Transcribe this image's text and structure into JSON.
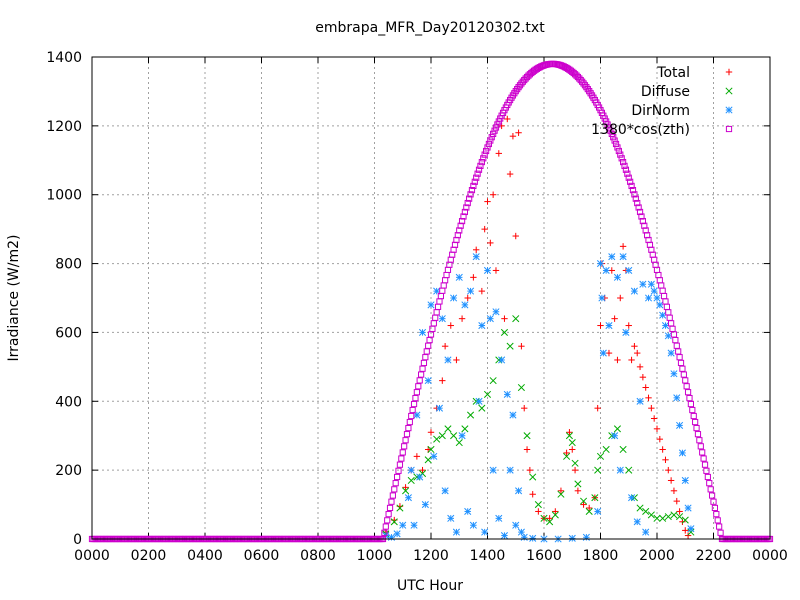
{
  "chart_data": {
    "type": "scatter",
    "title": "embrapa_MFR_Day20120302.txt",
    "xlabel": "UTC Hour",
    "ylabel": "Irradiance (W/m2)",
    "x_range_hours": [
      0,
      24
    ],
    "ylim": [
      0,
      1400
    ],
    "x_tick_labels": [
      "0000",
      "0200",
      "0400",
      "0600",
      "0800",
      "1000",
      "1200",
      "1400",
      "1600",
      "1800",
      "2000",
      "2200",
      "0000"
    ],
    "y_ticks": [
      0,
      200,
      400,
      600,
      800,
      1000,
      1200,
      1400
    ],
    "grid": true,
    "legend_position": "top-right",
    "series": [
      {
        "name": "Total",
        "marker": "plus",
        "color": "#ff0000",
        "points": [
          [
            10.4,
            20
          ],
          [
            10.7,
            55
          ],
          [
            10.9,
            95
          ],
          [
            11.1,
            150
          ],
          [
            11.3,
            200
          ],
          [
            11.5,
            240
          ],
          [
            11.7,
            200
          ],
          [
            11.9,
            260
          ],
          [
            12.0,
            310
          ],
          [
            12.2,
            380
          ],
          [
            12.4,
            460
          ],
          [
            12.5,
            560
          ],
          [
            12.7,
            620
          ],
          [
            12.9,
            520
          ],
          [
            13.1,
            640
          ],
          [
            13.3,
            700
          ],
          [
            13.5,
            760
          ],
          [
            13.6,
            840
          ],
          [
            13.8,
            720
          ],
          [
            13.9,
            900
          ],
          [
            14.0,
            980
          ],
          [
            14.1,
            860
          ],
          [
            14.2,
            1000
          ],
          [
            14.3,
            780
          ],
          [
            14.4,
            1120
          ],
          [
            14.5,
            1200
          ],
          [
            14.6,
            640
          ],
          [
            14.7,
            1220
          ],
          [
            14.8,
            1060
          ],
          [
            14.9,
            1170
          ],
          [
            15.0,
            880
          ],
          [
            15.1,
            1180
          ],
          [
            15.2,
            560
          ],
          [
            15.3,
            380
          ],
          [
            15.4,
            260
          ],
          [
            15.5,
            200
          ],
          [
            15.6,
            130
          ],
          [
            15.8,
            80
          ],
          [
            16.0,
            60
          ],
          [
            16.2,
            60
          ],
          [
            16.4,
            80
          ],
          [
            16.6,
            140
          ],
          [
            16.8,
            250
          ],
          [
            16.9,
            310
          ],
          [
            17.0,
            260
          ],
          [
            17.1,
            200
          ],
          [
            17.2,
            140
          ],
          [
            17.4,
            100
          ],
          [
            17.6,
            90
          ],
          [
            17.8,
            120
          ],
          [
            17.9,
            380
          ],
          [
            18.0,
            620
          ],
          [
            18.05,
            800
          ],
          [
            18.15,
            700
          ],
          [
            18.3,
            540
          ],
          [
            18.4,
            780
          ],
          [
            18.5,
            640
          ],
          [
            18.6,
            520
          ],
          [
            18.7,
            700
          ],
          [
            18.8,
            850
          ],
          [
            18.9,
            780
          ],
          [
            19.0,
            620
          ],
          [
            19.1,
            520
          ],
          [
            19.2,
            560
          ],
          [
            19.3,
            540
          ],
          [
            19.4,
            500
          ],
          [
            19.5,
            470
          ],
          [
            19.6,
            440
          ],
          [
            19.7,
            410
          ],
          [
            19.8,
            380
          ],
          [
            19.9,
            350
          ],
          [
            20.0,
            320
          ],
          [
            20.1,
            290
          ],
          [
            20.2,
            260
          ],
          [
            20.3,
            230
          ],
          [
            20.4,
            200
          ],
          [
            20.5,
            170
          ],
          [
            20.6,
            140
          ],
          [
            20.7,
            110
          ],
          [
            20.8,
            80
          ],
          [
            20.9,
            50
          ],
          [
            21.0,
            25
          ],
          [
            21.1,
            10
          ]
        ]
      },
      {
        "name": "Diffuse",
        "marker": "cross",
        "color": "#00aa00",
        "points": [
          [
            10.4,
            15
          ],
          [
            10.7,
            50
          ],
          [
            10.9,
            90
          ],
          [
            11.1,
            140
          ],
          [
            11.3,
            170
          ],
          [
            11.5,
            180
          ],
          [
            11.7,
            190
          ],
          [
            11.9,
            230
          ],
          [
            12.0,
            260
          ],
          [
            12.2,
            290
          ],
          [
            12.4,
            300
          ],
          [
            12.6,
            320
          ],
          [
            12.8,
            300
          ],
          [
            13.0,
            280
          ],
          [
            13.2,
            320
          ],
          [
            13.4,
            360
          ],
          [
            13.6,
            400
          ],
          [
            13.8,
            380
          ],
          [
            14.0,
            420
          ],
          [
            14.2,
            460
          ],
          [
            14.4,
            520
          ],
          [
            14.6,
            600
          ],
          [
            14.8,
            560
          ],
          [
            15.0,
            640
          ],
          [
            15.2,
            440
          ],
          [
            15.4,
            300
          ],
          [
            15.6,
            180
          ],
          [
            15.8,
            100
          ],
          [
            16.0,
            60
          ],
          [
            16.2,
            50
          ],
          [
            16.4,
            70
          ],
          [
            16.6,
            130
          ],
          [
            16.8,
            240
          ],
          [
            16.9,
            300
          ],
          [
            17.0,
            280
          ],
          [
            17.1,
            220
          ],
          [
            17.2,
            160
          ],
          [
            17.4,
            110
          ],
          [
            17.6,
            80
          ],
          [
            17.8,
            120
          ],
          [
            17.9,
            200
          ],
          [
            18.0,
            240
          ],
          [
            18.2,
            260
          ],
          [
            18.4,
            300
          ],
          [
            18.6,
            320
          ],
          [
            18.8,
            260
          ],
          [
            19.0,
            200
          ],
          [
            19.2,
            120
          ],
          [
            19.4,
            90
          ],
          [
            19.6,
            80
          ],
          [
            19.8,
            70
          ],
          [
            20.0,
            60
          ],
          [
            20.2,
            60
          ],
          [
            20.4,
            65
          ],
          [
            20.6,
            70
          ],
          [
            20.8,
            65
          ],
          [
            21.0,
            55
          ],
          [
            21.2,
            20
          ]
        ]
      },
      {
        "name": "DirNorm",
        "marker": "star",
        "color": "#1e90ff",
        "points": [
          [
            10.4,
            10
          ],
          [
            10.6,
            5
          ],
          [
            10.8,
            15
          ],
          [
            11.0,
            40
          ],
          [
            11.2,
            120
          ],
          [
            11.3,
            200
          ],
          [
            11.4,
            40
          ],
          [
            11.5,
            360
          ],
          [
            11.6,
            180
          ],
          [
            11.7,
            600
          ],
          [
            11.8,
            100
          ],
          [
            11.9,
            460
          ],
          [
            12.0,
            680
          ],
          [
            12.1,
            240
          ],
          [
            12.2,
            720
          ],
          [
            12.3,
            380
          ],
          [
            12.4,
            640
          ],
          [
            12.5,
            140
          ],
          [
            12.6,
            520
          ],
          [
            12.7,
            60
          ],
          [
            12.8,
            700
          ],
          [
            12.9,
            20
          ],
          [
            13.0,
            760
          ],
          [
            13.1,
            300
          ],
          [
            13.2,
            680
          ],
          [
            13.3,
            80
          ],
          [
            13.4,
            720
          ],
          [
            13.5,
            40
          ],
          [
            13.6,
            820
          ],
          [
            13.7,
            400
          ],
          [
            13.8,
            620
          ],
          [
            13.9,
            20
          ],
          [
            14.0,
            780
          ],
          [
            14.1,
            640
          ],
          [
            14.2,
            200
          ],
          [
            14.3,
            660
          ],
          [
            14.4,
            60
          ],
          [
            14.5,
            520
          ],
          [
            14.6,
            10
          ],
          [
            14.7,
            420
          ],
          [
            14.8,
            200
          ],
          [
            14.9,
            360
          ],
          [
            15.0,
            40
          ],
          [
            15.1,
            140
          ],
          [
            15.2,
            20
          ],
          [
            15.3,
            5
          ],
          [
            15.6,
            2
          ],
          [
            16.0,
            0
          ],
          [
            16.5,
            0
          ],
          [
            17.0,
            2
          ],
          [
            17.5,
            5
          ],
          [
            17.9,
            80
          ],
          [
            18.0,
            800
          ],
          [
            18.05,
            700
          ],
          [
            18.1,
            540
          ],
          [
            18.2,
            780
          ],
          [
            18.3,
            620
          ],
          [
            18.4,
            820
          ],
          [
            18.5,
            300
          ],
          [
            18.6,
            760
          ],
          [
            18.7,
            200
          ],
          [
            18.8,
            820
          ],
          [
            18.9,
            600
          ],
          [
            19.0,
            780
          ],
          [
            19.1,
            120
          ],
          [
            19.2,
            720
          ],
          [
            19.3,
            50
          ],
          [
            19.4,
            400
          ],
          [
            19.5,
            740
          ],
          [
            19.6,
            20
          ],
          [
            19.7,
            700
          ],
          [
            19.8,
            740
          ],
          [
            19.9,
            720
          ],
          [
            20.0,
            700
          ],
          [
            20.1,
            680
          ],
          [
            20.2,
            650
          ],
          [
            20.3,
            620
          ],
          [
            20.4,
            590
          ],
          [
            20.5,
            540
          ],
          [
            20.6,
            480
          ],
          [
            20.7,
            410
          ],
          [
            20.8,
            330
          ],
          [
            20.9,
            250
          ],
          [
            21.0,
            170
          ],
          [
            21.1,
            90
          ],
          [
            21.2,
            30
          ]
        ]
      },
      {
        "name": "1380*cos(zth)",
        "marker": "square",
        "color": "#cc00cc",
        "constant": 1380,
        "sunrise_hour": 10.3,
        "sunset_hour": 22.3,
        "peak_hour": 16.3,
        "peak_value": 1380
      }
    ]
  }
}
